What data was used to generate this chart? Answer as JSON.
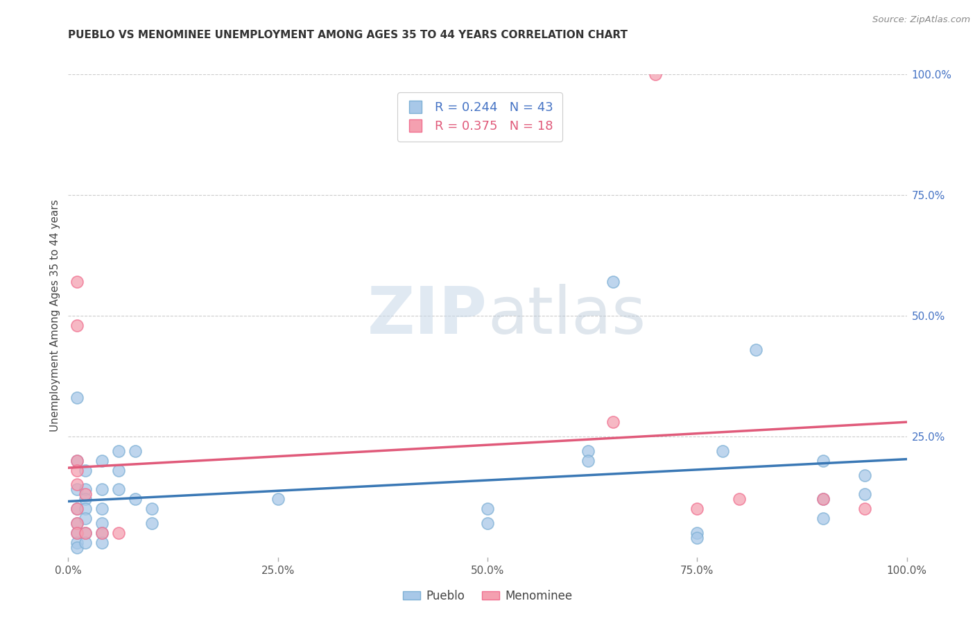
{
  "title": "PUEBLO VS MENOMINEE UNEMPLOYMENT AMONG AGES 35 TO 44 YEARS CORRELATION CHART",
  "source": "Source: ZipAtlas.com",
  "ylabel": "Unemployment Among Ages 35 to 44 years",
  "xlim": [
    0,
    1
  ],
  "ylim": [
    0,
    1
  ],
  "xtick_labels": [
    "0.0%",
    "25.0%",
    "50.0%",
    "75.0%",
    "100.0%"
  ],
  "xtick_vals": [
    0.0,
    0.25,
    0.5,
    0.75,
    1.0
  ],
  "right_ytick_labels": [
    "100.0%",
    "75.0%",
    "50.0%",
    "25.0%"
  ],
  "right_ytick_vals": [
    1.0,
    0.75,
    0.5,
    0.25
  ],
  "pueblo_color": "#a8c8e8",
  "menominee_color": "#f4a0b0",
  "pueblo_edge_color": "#7eb0d5",
  "menominee_edge_color": "#f07090",
  "pueblo_line_color": "#3a78b5",
  "menominee_line_color": "#e05a7a",
  "pueblo_R": 0.244,
  "pueblo_N": 43,
  "menominee_R": 0.375,
  "menominee_N": 18,
  "pueblo_points": [
    [
      0.01,
      0.33
    ],
    [
      0.01,
      0.2
    ],
    [
      0.01,
      0.14
    ],
    [
      0.01,
      0.1
    ],
    [
      0.01,
      0.07
    ],
    [
      0.01,
      0.05
    ],
    [
      0.01,
      0.03
    ],
    [
      0.01,
      0.02
    ],
    [
      0.02,
      0.18
    ],
    [
      0.02,
      0.14
    ],
    [
      0.02,
      0.12
    ],
    [
      0.02,
      0.1
    ],
    [
      0.02,
      0.08
    ],
    [
      0.02,
      0.05
    ],
    [
      0.02,
      0.03
    ],
    [
      0.04,
      0.2
    ],
    [
      0.04,
      0.14
    ],
    [
      0.04,
      0.1
    ],
    [
      0.04,
      0.07
    ],
    [
      0.04,
      0.05
    ],
    [
      0.04,
      0.03
    ],
    [
      0.06,
      0.22
    ],
    [
      0.06,
      0.18
    ],
    [
      0.06,
      0.14
    ],
    [
      0.08,
      0.22
    ],
    [
      0.08,
      0.12
    ],
    [
      0.1,
      0.1
    ],
    [
      0.1,
      0.07
    ],
    [
      0.25,
      0.12
    ],
    [
      0.5,
      0.1
    ],
    [
      0.5,
      0.07
    ],
    [
      0.62,
      0.22
    ],
    [
      0.62,
      0.2
    ],
    [
      0.65,
      0.57
    ],
    [
      0.75,
      0.05
    ],
    [
      0.75,
      0.04
    ],
    [
      0.78,
      0.22
    ],
    [
      0.82,
      0.43
    ],
    [
      0.9,
      0.2
    ],
    [
      0.9,
      0.12
    ],
    [
      0.9,
      0.08
    ],
    [
      0.95,
      0.17
    ],
    [
      0.95,
      0.13
    ]
  ],
  "menominee_points": [
    [
      0.01,
      0.57
    ],
    [
      0.01,
      0.48
    ],
    [
      0.01,
      0.2
    ],
    [
      0.01,
      0.18
    ],
    [
      0.01,
      0.15
    ],
    [
      0.01,
      0.1
    ],
    [
      0.01,
      0.07
    ],
    [
      0.01,
      0.05
    ],
    [
      0.02,
      0.13
    ],
    [
      0.02,
      0.05
    ],
    [
      0.04,
      0.05
    ],
    [
      0.06,
      0.05
    ],
    [
      0.65,
      0.28
    ],
    [
      0.7,
      1.0
    ],
    [
      0.75,
      0.1
    ],
    [
      0.8,
      0.12
    ],
    [
      0.9,
      0.12
    ],
    [
      0.95,
      0.1
    ]
  ],
  "background_color": "#ffffff",
  "grid_color": "#cccccc",
  "watermark_zip": "ZIP",
  "watermark_atlas": "atlas",
  "watermark_color": "#c8d8e8"
}
